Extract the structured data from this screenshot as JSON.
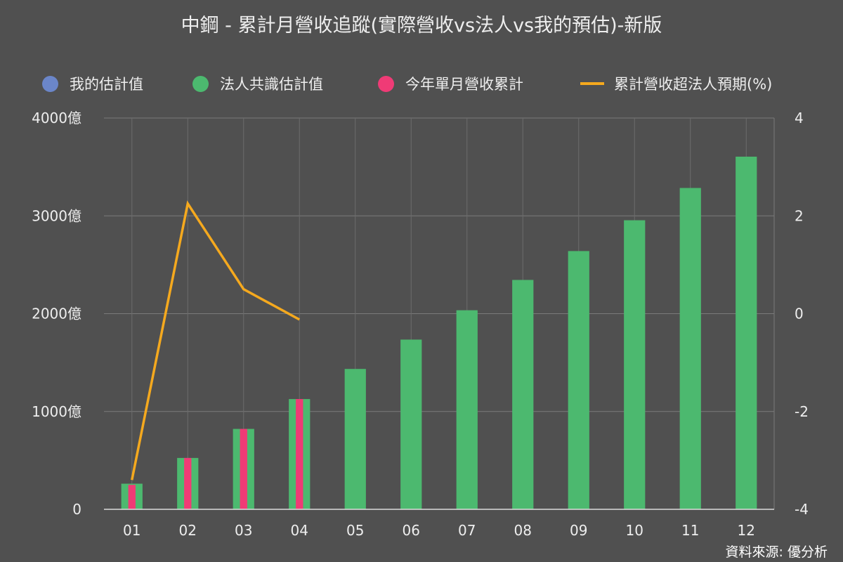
{
  "title": "中鋼 - 累計月營收追蹤(實際營收vs法人vs我的預估)-新版",
  "source": "資料來源: 優分析",
  "legend": [
    {
      "label": "我的估計值",
      "color": "#6b86c9",
      "shape": "dot"
    },
    {
      "label": "法人共識估計值",
      "color": "#4cb96f",
      "shape": "dot"
    },
    {
      "label": "今年單月營收累計",
      "color": "#ef3b76",
      "shape": "dot"
    },
    {
      "label": "累計營收超法人預期(%)",
      "color": "#f5a91e",
      "shape": "line"
    }
  ],
  "chart_data": {
    "type": "bar",
    "categories": [
      "01",
      "02",
      "03",
      "04",
      "05",
      "06",
      "07",
      "08",
      "09",
      "10",
      "11",
      "12"
    ],
    "series": [
      {
        "name": "法人共識估計值",
        "type": "bar",
        "axis": "left",
        "color": "#4cb96f",
        "values": [
          262,
          525,
          822,
          1127,
          1435,
          1735,
          2035,
          2345,
          2640,
          2955,
          3285,
          3605
        ]
      },
      {
        "name": "今年單月營收累計",
        "type": "bar",
        "axis": "left",
        "color": "#ef3b76",
        "values": [
          250,
          525,
          822,
          1127,
          null,
          null,
          null,
          null,
          null,
          null,
          null,
          null
        ]
      },
      {
        "name": "累計營收超法人預期(%)",
        "type": "line",
        "axis": "right",
        "color": "#f5a91e",
        "values": [
          -3.4,
          2.25,
          0.5,
          -0.12,
          null,
          null,
          null,
          null,
          null,
          null,
          null,
          null
        ]
      }
    ],
    "y_left": {
      "min": 0,
      "max": 4000,
      "ticks": [
        0,
        1000,
        2000,
        3000,
        4000
      ],
      "tick_labels": [
        "0",
        "1000億",
        "2000億",
        "3000億",
        "4000億"
      ]
    },
    "y_right": {
      "min": -4,
      "max": 4,
      "ticks": [
        -4,
        -2,
        0,
        2,
        4
      ],
      "tick_labels": [
        "-4",
        "-2",
        "0",
        "2",
        "4"
      ]
    },
    "grid": true,
    "legend_position": "top"
  }
}
